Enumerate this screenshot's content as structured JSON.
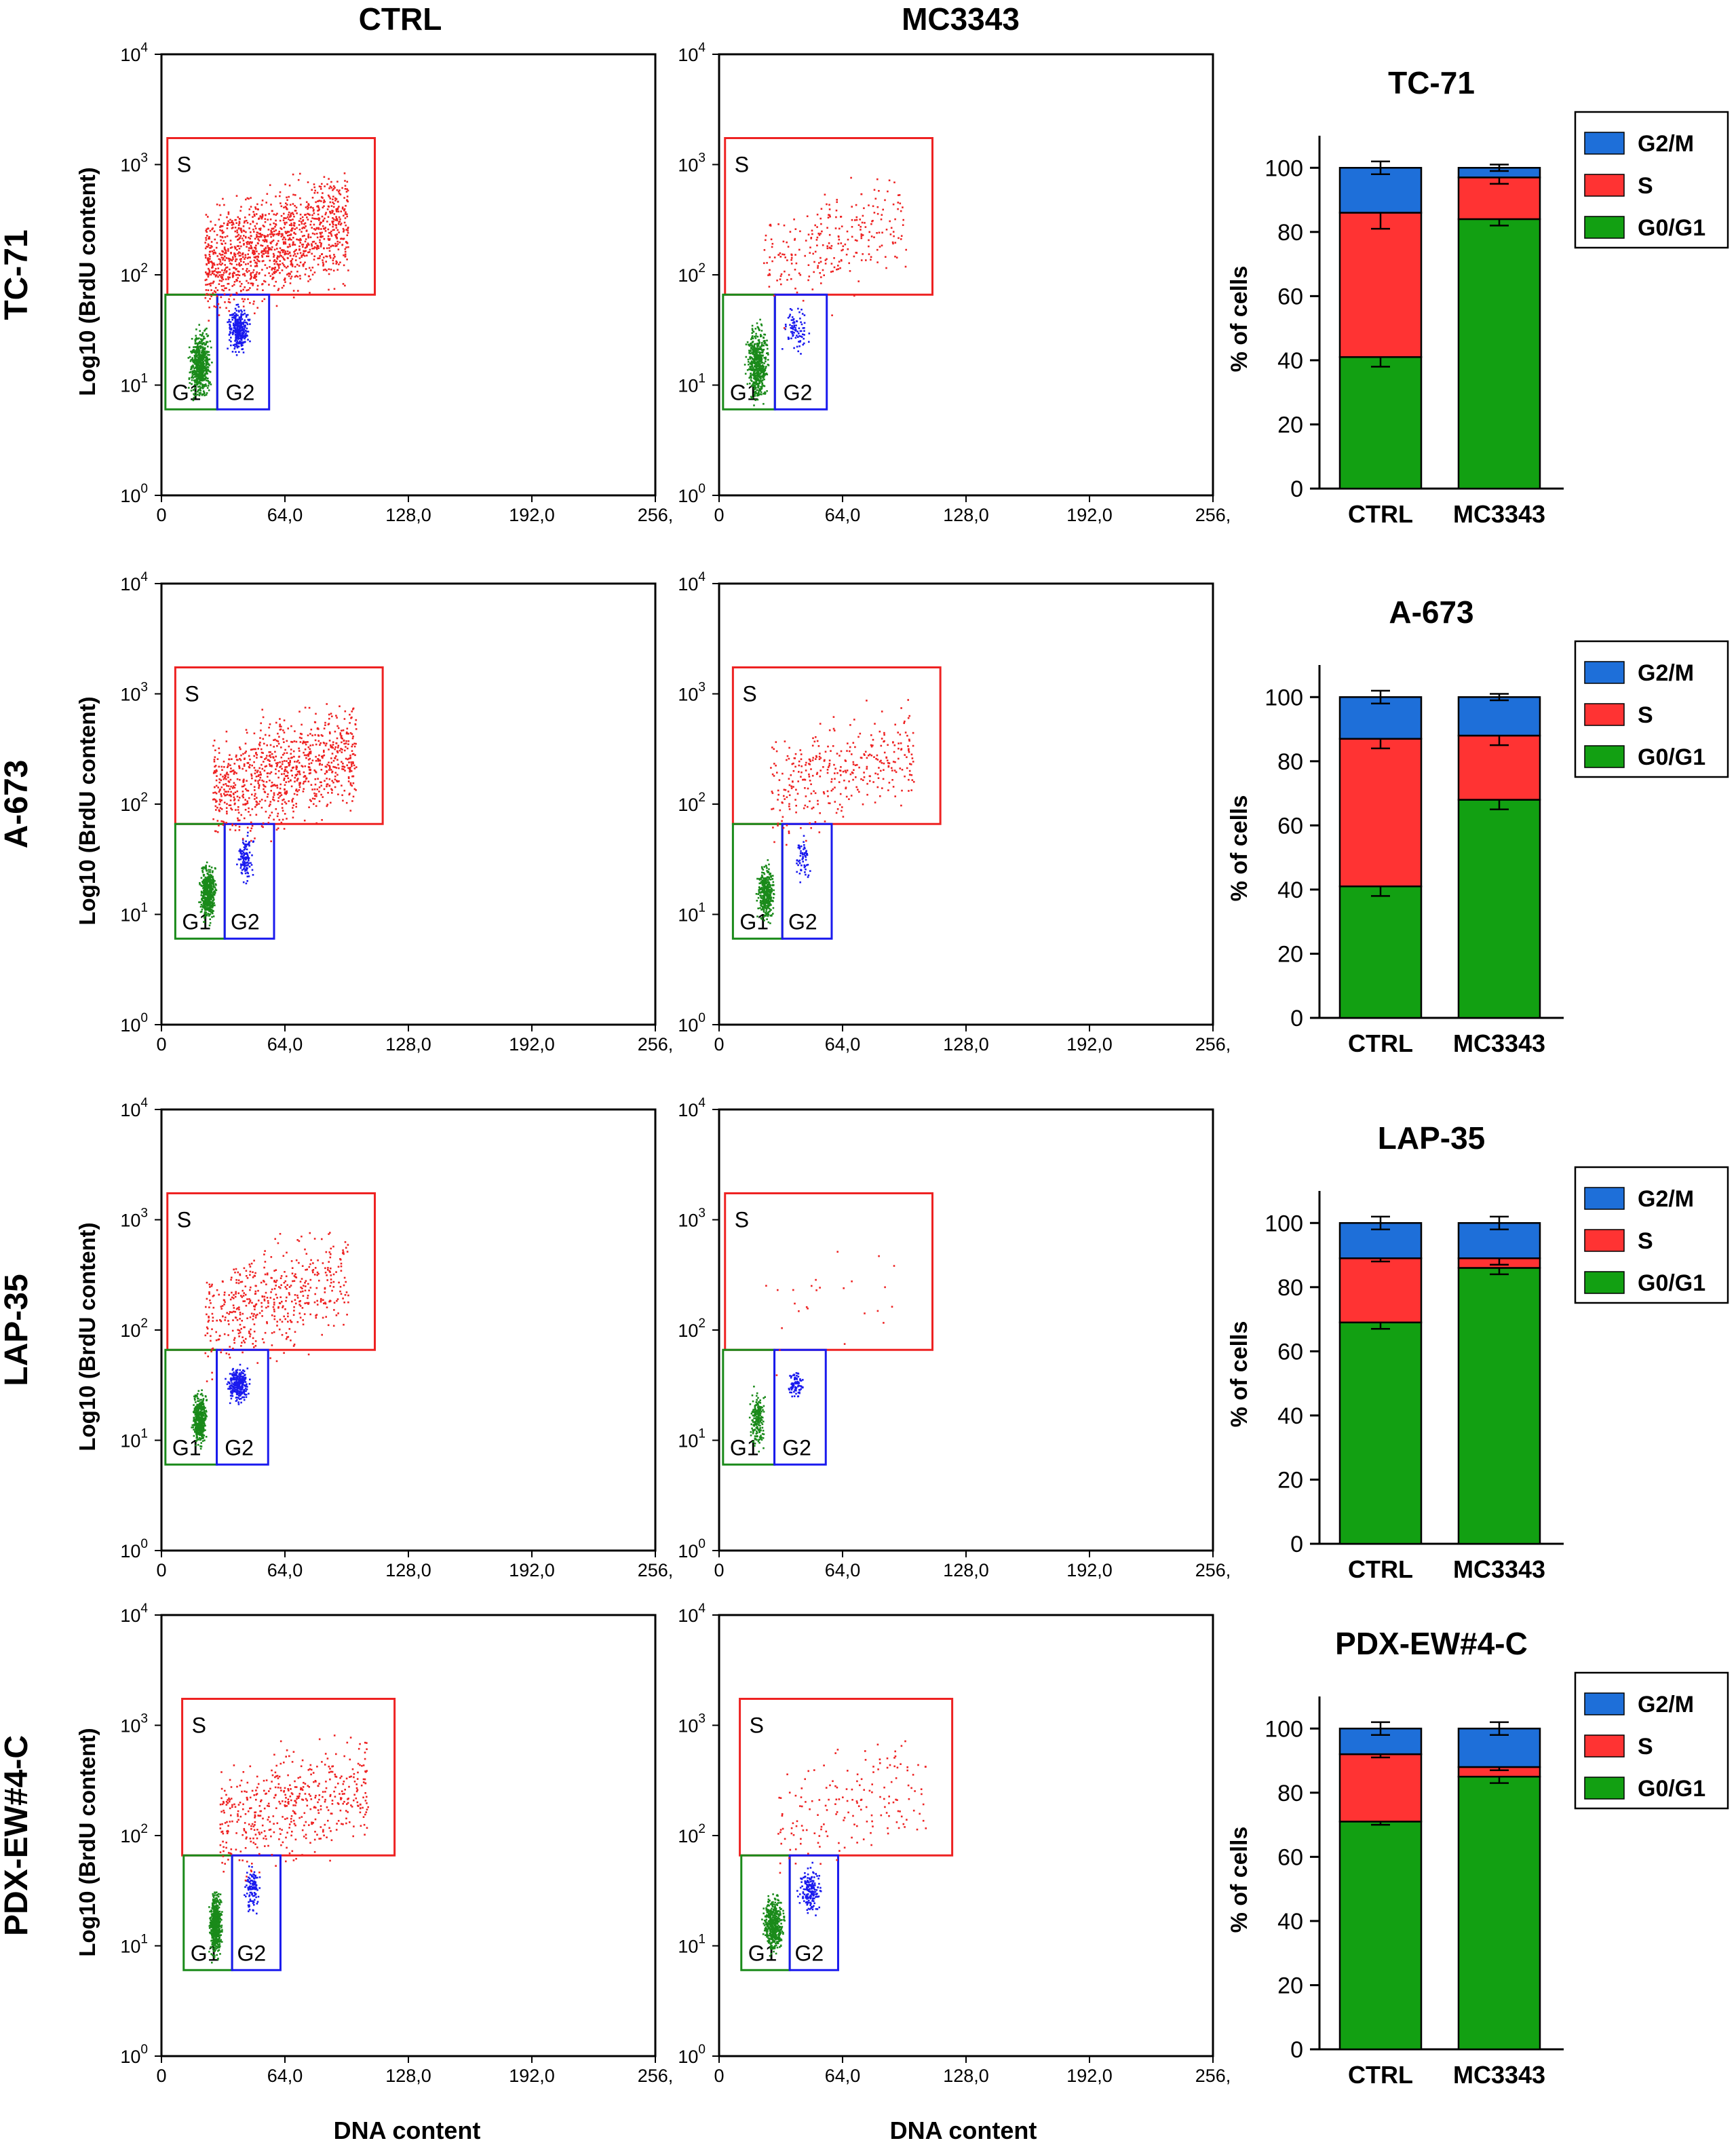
{
  "figure": {
    "column_headers": [
      "CTRL",
      "MC3343"
    ],
    "flow_axes": {
      "xlabel": "DNA content",
      "ylabel": "Log10 (BrdU content)",
      "x_ticks": [
        "0",
        "64,0",
        "128,0",
        "192,0",
        "256,"
      ],
      "y_tick_base": "10",
      "y_tick_exponents": [
        "0",
        "1",
        "2",
        "3",
        "4"
      ]
    },
    "gate_labels": {
      "s": "S",
      "g1": "G1",
      "g2": "G2"
    },
    "bar_axes": {
      "ylabel": "% of cells",
      "ticks": [
        "0",
        "20",
        "40",
        "60",
        "80",
        "100"
      ]
    },
    "legend": [
      "G2/M",
      "S",
      "G0/G1"
    ],
    "rows": [
      {
        "label": "TC-71",
        "bar_title": "TC-71"
      },
      {
        "label": "A-673",
        "bar_title": "A-673"
      },
      {
        "label": "LAP-35",
        "bar_title": "LAP-35"
      },
      {
        "label": "PDX-EW#4-C",
        "bar_title": "PDX-EW#4-C"
      }
    ]
  },
  "colors": {
    "g1": "#1a8a1a",
    "s": "#ee2222",
    "g2": "#1a1aee",
    "legend_g2m": "#1e6fd9",
    "legend_s": "#ff3333",
    "legend_g0g1": "#12a012"
  },
  "chart_data": [
    {
      "type": "bar",
      "stacked": true,
      "title": "TC-71",
      "categories": [
        "CTRL",
        "MC3343"
      ],
      "ylabel": "% of cells",
      "ylim": [
        0,
        110
      ],
      "series": [
        {
          "name": "G0/G1",
          "values": [
            41,
            84
          ],
          "errors": [
            3,
            2
          ]
        },
        {
          "name": "S",
          "values": [
            45,
            13
          ],
          "errors": [
            5,
            2
          ]
        },
        {
          "name": "G2/M",
          "values": [
            14,
            3
          ],
          "errors": [
            2,
            1
          ]
        }
      ]
    },
    {
      "type": "bar",
      "stacked": true,
      "title": "A-673",
      "categories": [
        "CTRL",
        "MC3343"
      ],
      "ylabel": "% of cells",
      "ylim": [
        0,
        110
      ],
      "series": [
        {
          "name": "G0/G1",
          "values": [
            41,
            68
          ],
          "errors": [
            3,
            3
          ]
        },
        {
          "name": "S",
          "values": [
            46,
            20
          ],
          "errors": [
            3,
            3
          ]
        },
        {
          "name": "G2/M",
          "values": [
            13,
            12
          ],
          "errors": [
            2,
            1
          ]
        }
      ]
    },
    {
      "type": "bar",
      "stacked": true,
      "title": "LAP-35",
      "categories": [
        "CTRL",
        "MC3343"
      ],
      "ylabel": "% of cells",
      "ylim": [
        0,
        110
      ],
      "series": [
        {
          "name": "G0/G1",
          "values": [
            69,
            86
          ],
          "errors": [
            2,
            2
          ]
        },
        {
          "name": "S",
          "values": [
            20,
            3
          ],
          "errors": [
            1,
            2
          ]
        },
        {
          "name": "G2/M",
          "values": [
            11,
            11
          ],
          "errors": [
            2,
            2
          ]
        }
      ]
    },
    {
      "type": "bar",
      "stacked": true,
      "title": "PDX-EW#4-C",
      "categories": [
        "CTRL",
        "MC3343"
      ],
      "ylabel": "% of cells",
      "ylim": [
        0,
        110
      ],
      "series": [
        {
          "name": "G0/G1",
          "values": [
            71,
            85
          ],
          "errors": [
            1,
            2
          ]
        },
        {
          "name": "S",
          "values": [
            21,
            3
          ],
          "errors": [
            1,
            1
          ]
        },
        {
          "name": "G2/M",
          "values": [
            8,
            12
          ],
          "errors": [
            2,
            2
          ]
        }
      ]
    }
  ]
}
